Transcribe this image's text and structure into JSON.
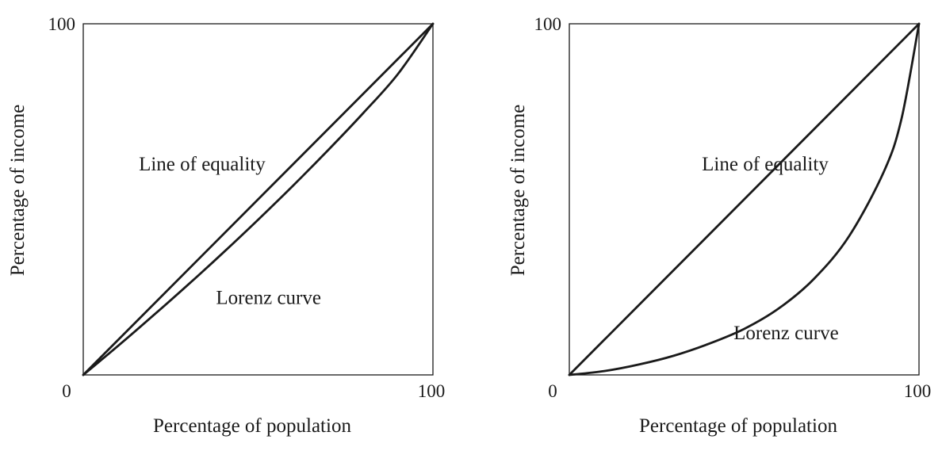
{
  "chart_data": [
    {
      "type": "line",
      "title": "",
      "xlabel": "Percentage of population",
      "ylabel": "Percentage of income",
      "xlim": [
        0,
        100
      ],
      "ylim": [
        0,
        100
      ],
      "grid": false,
      "x_tick_labels": [
        "0",
        "100"
      ],
      "y_tick_labels": [
        "100"
      ],
      "series": [
        {
          "name": "Line of equality",
          "x": [
            0,
            100
          ],
          "y": [
            0,
            100
          ]
        },
        {
          "name": "Lorenz curve",
          "x": [
            0,
            10,
            20,
            30,
            40,
            50,
            60,
            70,
            80,
            90,
            100
          ],
          "y": [
            0,
            8.3,
            16.9,
            25.7,
            34.8,
            44.2,
            53.9,
            64.0,
            74.5,
            85.7,
            100
          ]
        }
      ],
      "annotations": [
        {
          "text": "Line of equality",
          "x": 34,
          "y": 60
        },
        {
          "text": "Lorenz curve",
          "x": 53,
          "y": 22
        }
      ]
    },
    {
      "type": "line",
      "title": "",
      "xlabel": "Percentage of population",
      "ylabel": "Percentage of income",
      "xlim": [
        0,
        100
      ],
      "ylim": [
        0,
        100
      ],
      "grid": false,
      "x_tick_labels": [
        "0",
        "100"
      ],
      "y_tick_labels": [
        "100"
      ],
      "series": [
        {
          "name": "Line of equality",
          "x": [
            0,
            100
          ],
          "y": [
            0,
            100
          ]
        },
        {
          "name": "Lorenz curve",
          "x": [
            0,
            10,
            20,
            30,
            40,
            50,
            60,
            70,
            80,
            90,
            95,
            100
          ],
          "y": [
            0,
            1.1,
            3.0,
            5.5,
            8.9,
            13.1,
            19.0,
            27.4,
            39.5,
            58.0,
            73.0,
            100
          ]
        }
      ],
      "annotations": [
        {
          "text": "Line of equality",
          "x": 56,
          "y": 60
        },
        {
          "text": "Lorenz curve",
          "x": 62,
          "y": 12
        }
      ]
    }
  ]
}
